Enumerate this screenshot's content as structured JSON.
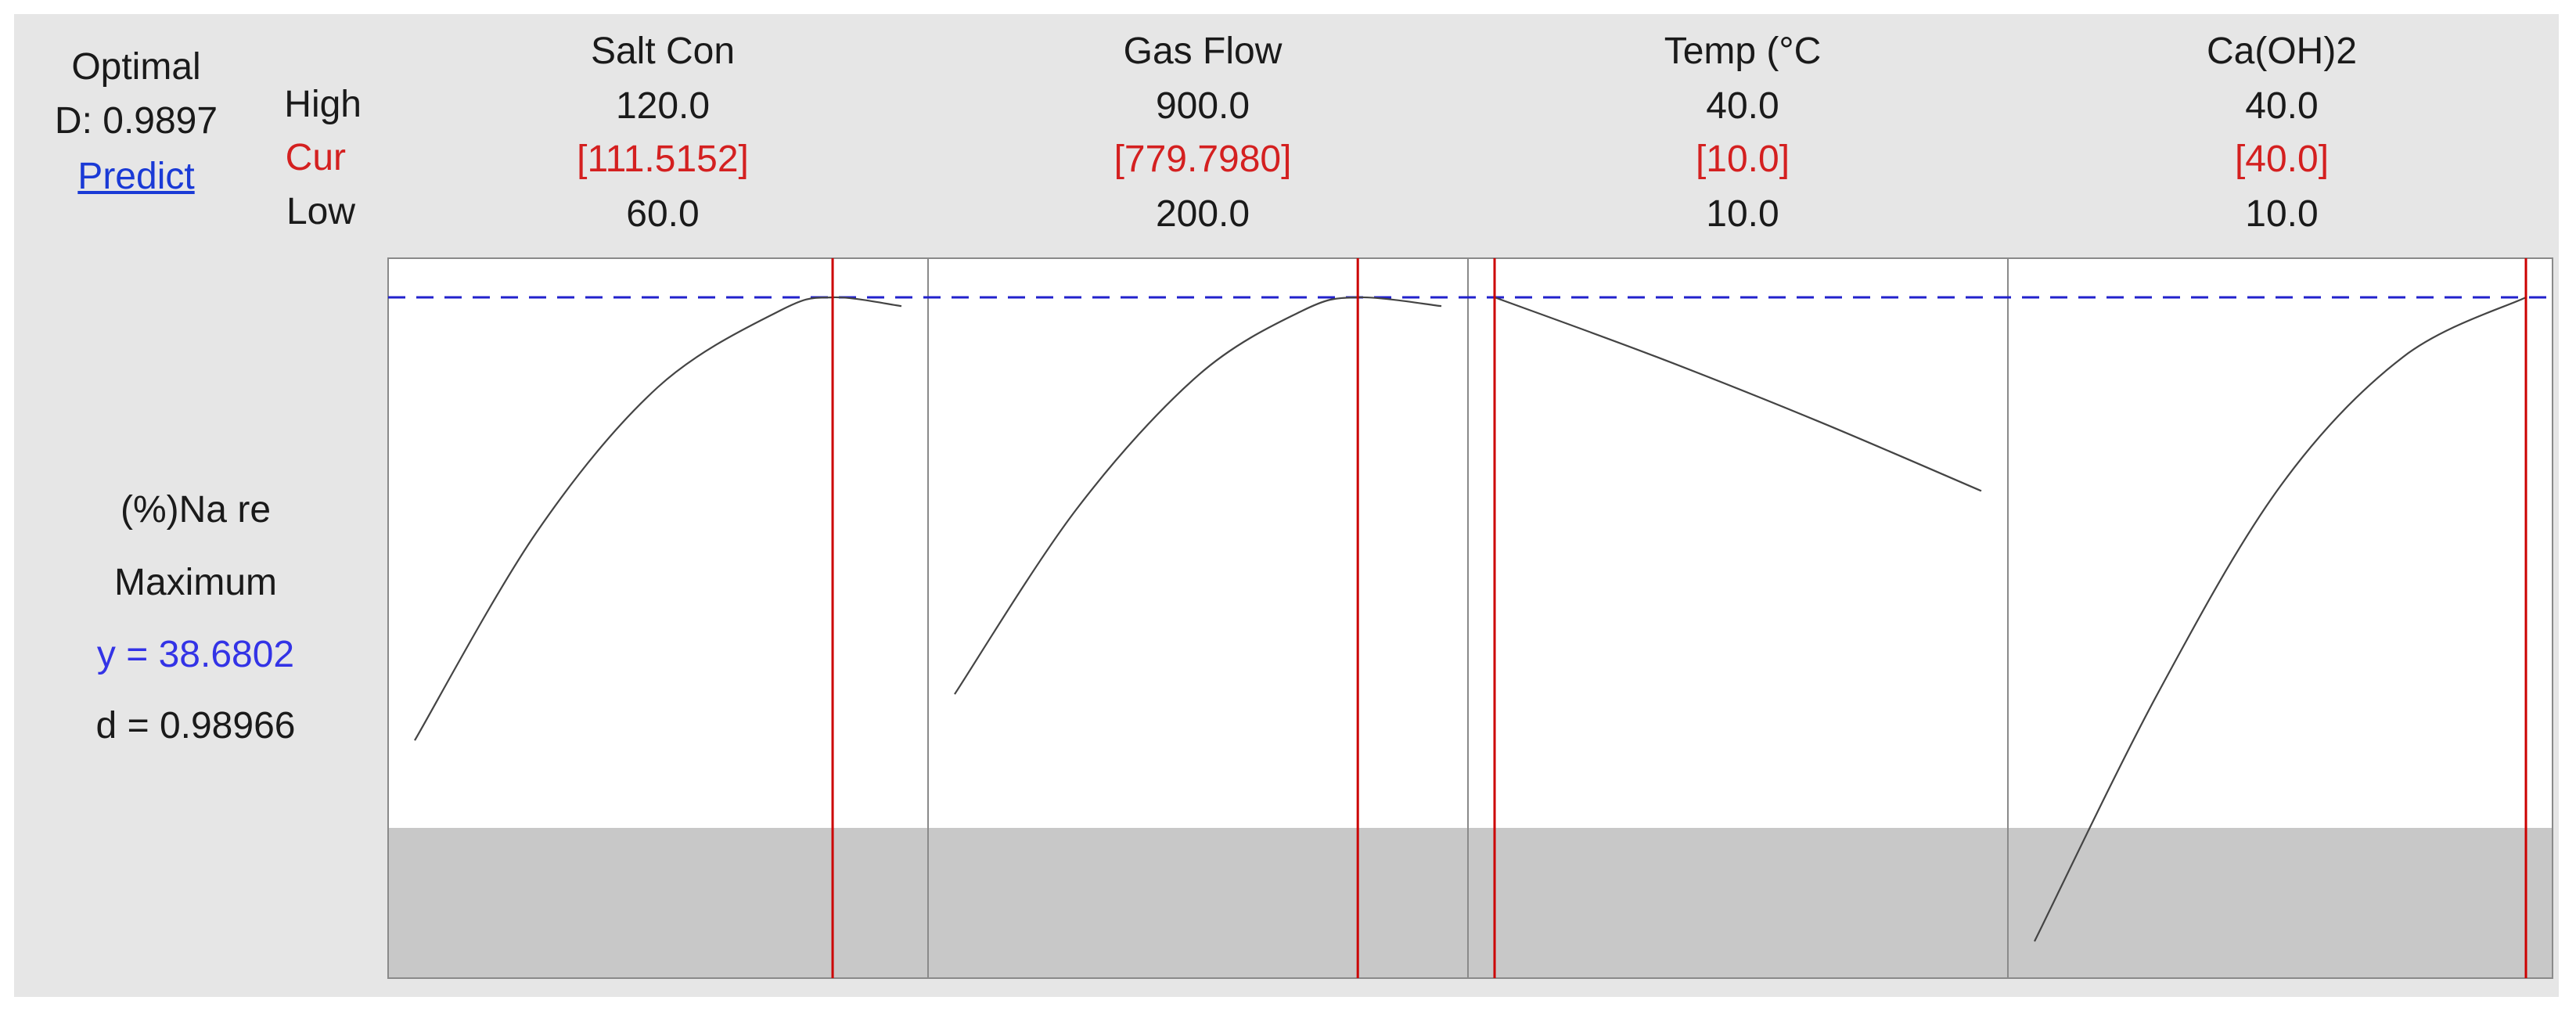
{
  "optimal": {
    "title": "Optimal",
    "d_label": "D: 0.9897",
    "predict_label": "Predict"
  },
  "row_labels": {
    "high": "High",
    "cur": "Cur",
    "low": "Low"
  },
  "response": {
    "name": "(%)Na re",
    "goal": "Maximum",
    "y_text": "y = 38.6802",
    "d_text": "d = 0.98966"
  },
  "colors": {
    "current_line": "#cc0000",
    "target_line": "#2222cc",
    "curve": "#444444",
    "grey_band": "#c8c8c8"
  },
  "chart_data": {
    "type": "line",
    "y_target": 38.6802,
    "y_range_approx": [
      10,
      40
    ],
    "grey_band_below": 13,
    "factors": [
      {
        "name": "Salt Con",
        "high": "120.0",
        "cur": "[111.5152]",
        "low": "60.0",
        "range": [
          60,
          120
        ],
        "current": 111.5152,
        "x": [
          60,
          75,
          90,
          105,
          111.5,
          120
        ],
        "y": [
          19.5,
          28.5,
          34.8,
          38.1,
          38.68,
          38.3
        ]
      },
      {
        "name": "Gas Flow",
        "high": "900.0",
        "cur": "[779.7980]",
        "low": "200.0",
        "range": [
          200,
          900
        ],
        "current": 779.798,
        "x": [
          200,
          375,
          550,
          700,
          779.8,
          900
        ],
        "y": [
          21.5,
          29.5,
          35.3,
          38.1,
          38.68,
          38.3
        ]
      },
      {
        "name": "Temp (°C",
        "high": "40.0",
        "cur": "[10.0]",
        "low": "10.0",
        "range": [
          10,
          40
        ],
        "current": 10,
        "x": [
          10,
          20,
          30,
          40
        ],
        "y": [
          38.68,
          36.1,
          33.3,
          30.3
        ]
      },
      {
        "name": "Ca(OH)2",
        "high": "40.0",
        "cur": "[40.0]",
        "low": "10.0",
        "range": [
          10,
          40
        ],
        "current": 40,
        "x": [
          10,
          17.5,
          25,
          32.5,
          40
        ],
        "y": [
          10.8,
          21.5,
          30.5,
          36.1,
          38.68
        ]
      }
    ]
  }
}
